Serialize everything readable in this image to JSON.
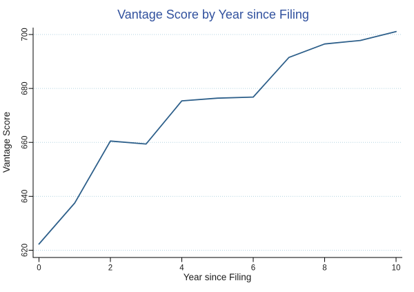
{
  "figure": {
    "title": "Vantage Score by Year since Filing"
  },
  "chart_data": {
    "type": "line",
    "title": "Vantage Score by Year since Filing",
    "xlabel": "Year since Filing",
    "ylabel": "Vantage Score",
    "x": [
      0,
      1,
      2,
      3,
      4,
      5,
      6,
      7,
      8,
      9,
      10
    ],
    "series": [
      {
        "name": "Vantage Score",
        "values": [
          622.3,
          637.5,
          660.5,
          659.4,
          675.4,
          676.4,
          676.8,
          691.5,
          696.5,
          697.8,
          701.1
        ]
      }
    ],
    "xticks": [
      0,
      2,
      4,
      6,
      8,
      10
    ],
    "yticks": [
      620,
      640,
      660,
      680,
      700
    ],
    "xlim": [
      0,
      10
    ],
    "ylim": [
      618,
      703
    ],
    "grid": "horizontal-dotted",
    "legend": "none",
    "colors": {
      "line": "#2d5f8a",
      "gridline": "#b0d2e0",
      "axis": "#000000",
      "tick_text": "#1a1a1a",
      "title_text": "#31519e",
      "background": "#ffffff"
    }
  }
}
